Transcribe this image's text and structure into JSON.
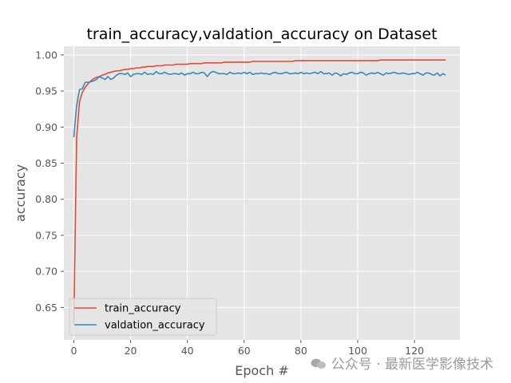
{
  "chart_data": {
    "type": "line",
    "title": "train_accuracy,valdation_accuracy on Dataset",
    "xlabel": "Epoch #",
    "ylabel": "accuracy",
    "xlim": [
      -3.5,
      136
    ],
    "ylim": [
      0.605,
      1.012
    ],
    "xticks": [
      0,
      20,
      40,
      60,
      80,
      100,
      120
    ],
    "yticks": [
      0.65,
      0.7,
      0.75,
      0.8,
      0.85,
      0.9,
      0.95,
      1.0
    ],
    "ytick_labels": [
      "0.65",
      "0.70",
      "0.75",
      "0.80",
      "0.85",
      "0.90",
      "0.95",
      "1.00"
    ],
    "grid": true,
    "legend_position": "lower-left",
    "x": [
      0,
      1,
      2,
      3,
      4,
      5,
      6,
      7,
      8,
      9,
      10,
      11,
      12,
      13,
      14,
      15,
      16,
      17,
      18,
      19,
      20,
      21,
      22,
      23,
      24,
      25,
      26,
      27,
      28,
      29,
      30,
      31,
      32,
      33,
      34,
      35,
      36,
      37,
      38,
      39,
      40,
      41,
      42,
      43,
      44,
      45,
      46,
      47,
      48,
      49,
      50,
      51,
      52,
      53,
      54,
      55,
      56,
      57,
      58,
      59,
      60,
      61,
      62,
      63,
      64,
      65,
      66,
      67,
      68,
      69,
      70,
      71,
      72,
      73,
      74,
      75,
      76,
      77,
      78,
      79,
      80,
      81,
      82,
      83,
      84,
      85,
      86,
      87,
      88,
      89,
      90,
      91,
      92,
      93,
      94,
      95,
      96,
      97,
      98,
      99,
      100,
      101,
      102,
      103,
      104,
      105,
      106,
      107,
      108,
      109,
      110,
      111,
      112,
      113,
      114,
      115,
      116,
      117,
      118,
      119,
      120,
      121,
      122,
      123,
      124,
      125,
      126,
      127,
      128,
      129,
      130,
      131
    ],
    "series": [
      {
        "name": "train_accuracy",
        "color": "#e24a33",
        "values": [
          0.627,
          0.885,
          0.935,
          0.948,
          0.955,
          0.96,
          0.964,
          0.967,
          0.969,
          0.97,
          0.972,
          0.973,
          0.975,
          0.976,
          0.977,
          0.978,
          0.978,
          0.979,
          0.98,
          0.98,
          0.981,
          0.981,
          0.982,
          0.982,
          0.983,
          0.983,
          0.984,
          0.984,
          0.984,
          0.985,
          0.985,
          0.985,
          0.986,
          0.986,
          0.986,
          0.986,
          0.987,
          0.987,
          0.987,
          0.987,
          0.987,
          0.988,
          0.988,
          0.988,
          0.988,
          0.988,
          0.989,
          0.989,
          0.989,
          0.989,
          0.989,
          0.989,
          0.989,
          0.99,
          0.99,
          0.99,
          0.99,
          0.99,
          0.99,
          0.99,
          0.99,
          0.99,
          0.99,
          0.991,
          0.991,
          0.991,
          0.991,
          0.991,
          0.991,
          0.991,
          0.991,
          0.991,
          0.991,
          0.991,
          0.991,
          0.991,
          0.991,
          0.991,
          0.992,
          0.992,
          0.992,
          0.992,
          0.992,
          0.992,
          0.992,
          0.992,
          0.992,
          0.992,
          0.992,
          0.992,
          0.992,
          0.992,
          0.992,
          0.992,
          0.992,
          0.992,
          0.992,
          0.992,
          0.992,
          0.992,
          0.992,
          0.992,
          0.992,
          0.992,
          0.992,
          0.992,
          0.992,
          0.992,
          0.993,
          0.993,
          0.993,
          0.993,
          0.993,
          0.993,
          0.993,
          0.993,
          0.993,
          0.993,
          0.993,
          0.993,
          0.993,
          0.993,
          0.993,
          0.993,
          0.993,
          0.993,
          0.993,
          0.993,
          0.993,
          0.993,
          0.993,
          0.993
        ]
      },
      {
        "name": "valdation_accuracy",
        "color": "#348abd",
        "values": [
          0.886,
          0.93,
          0.952,
          0.953,
          0.962,
          0.962,
          0.963,
          0.964,
          0.966,
          0.97,
          0.968,
          0.966,
          0.97,
          0.966,
          0.968,
          0.972,
          0.974,
          0.974,
          0.973,
          0.975,
          0.97,
          0.973,
          0.974,
          0.974,
          0.973,
          0.976,
          0.973,
          0.974,
          0.973,
          0.977,
          0.974,
          0.974,
          0.976,
          0.974,
          0.973,
          0.974,
          0.974,
          0.973,
          0.975,
          0.972,
          0.974,
          0.974,
          0.976,
          0.974,
          0.974,
          0.976,
          0.975,
          0.97,
          0.975,
          0.977,
          0.976,
          0.974,
          0.974,
          0.974,
          0.973,
          0.976,
          0.974,
          0.974,
          0.975,
          0.974,
          0.976,
          0.974,
          0.976,
          0.973,
          0.974,
          0.974,
          0.975,
          0.974,
          0.974,
          0.973,
          0.975,
          0.976,
          0.974,
          0.974,
          0.975,
          0.976,
          0.974,
          0.974,
          0.975,
          0.974,
          0.976,
          0.974,
          0.975,
          0.974,
          0.975,
          0.976,
          0.974,
          0.977,
          0.974,
          0.974,
          0.975,
          0.972,
          0.975,
          0.974,
          0.971,
          0.974,
          0.973,
          0.975,
          0.976,
          0.974,
          0.974,
          0.976,
          0.975,
          0.972,
          0.974,
          0.975,
          0.974,
          0.976,
          0.974,
          0.972,
          0.975,
          0.974,
          0.975,
          0.976,
          0.974,
          0.974,
          0.975,
          0.974,
          0.973,
          0.974,
          0.974,
          0.976,
          0.974,
          0.972,
          0.975,
          0.975,
          0.973,
          0.972,
          0.975,
          0.971,
          0.974,
          0.972
        ]
      }
    ]
  },
  "watermark": {
    "icon": "wechat-icon",
    "text": "公众号 · 最新医学影像技术"
  }
}
